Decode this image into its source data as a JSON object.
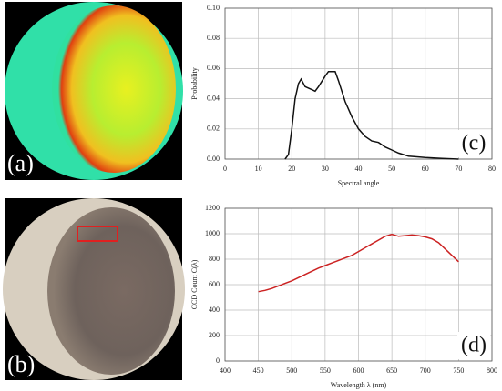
{
  "panel_labels": [
    "(a)",
    "(b)"
  ],
  "chart_data": [
    {
      "type": "line",
      "x_label": "Spectral angle",
      "y_label": "Probability",
      "annotation": "(c)",
      "x": [
        18,
        19,
        20,
        21,
        22,
        22.8,
        24,
        26,
        27,
        28,
        30,
        31,
        32,
        33,
        34,
        35,
        36,
        38,
        40,
        42,
        44,
        46,
        48,
        50,
        52,
        55,
        60,
        65,
        70
      ],
      "values": [
        0,
        0.003,
        0.02,
        0.04,
        0.05,
        0.053,
        0.048,
        0.046,
        0.045,
        0.048,
        0.055,
        0.058,
        0.058,
        0.058,
        0.052,
        0.045,
        0.038,
        0.028,
        0.02,
        0.015,
        0.012,
        0.011,
        0.008,
        0.006,
        0.004,
        0.002,
        0.001,
        0.0005,
        0
      ],
      "color": "#111111",
      "xlim": [
        0,
        80
      ],
      "xticks": [
        0,
        10,
        20,
        30,
        40,
        50,
        60,
        70,
        80
      ],
      "ylim": [
        0,
        0.1
      ],
      "yticks": [
        {
          "value": 0,
          "label": "0.00"
        },
        {
          "value": 0.02,
          "label": "0.02"
        },
        {
          "value": 0.04,
          "label": "0.04"
        },
        {
          "value": 0.06,
          "label": "0.06"
        },
        {
          "value": 0.08,
          "label": "0.08"
        },
        {
          "value": 0.1,
          "label": "0.10"
        }
      ],
      "grid": true
    },
    {
      "type": "line",
      "x_label": "Wavelength λ (nm)",
      "y_label": "CCD Count C(λ)",
      "annotation": "(d)",
      "x": [
        450,
        460,
        470,
        480,
        490,
        500,
        510,
        520,
        530,
        540,
        550,
        560,
        570,
        580,
        590,
        600,
        610,
        620,
        630,
        640,
        650,
        660,
        670,
        680,
        690,
        700,
        710,
        720,
        730,
        740,
        750
      ],
      "values": [
        545,
        555,
        570,
        590,
        610,
        630,
        655,
        680,
        705,
        730,
        750,
        770,
        790,
        810,
        830,
        860,
        890,
        920,
        950,
        980,
        995,
        980,
        985,
        990,
        985,
        975,
        960,
        930,
        880,
        830,
        780
      ],
      "color": "#cc2222",
      "xlim": [
        400,
        800
      ],
      "xticks": [
        400,
        450,
        500,
        550,
        600,
        650,
        700,
        750,
        800
      ],
      "ylim": [
        0,
        1200
      ],
      "yticks": [
        0,
        200,
        400,
        600,
        800,
        1000,
        1200
      ],
      "grid": true
    }
  ]
}
